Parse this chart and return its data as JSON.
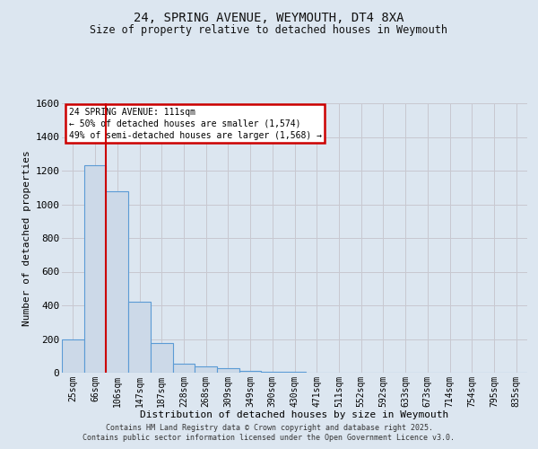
{
  "title_line1": "24, SPRING AVENUE, WEYMOUTH, DT4 8XA",
  "title_line2": "Size of property relative to detached houses in Weymouth",
  "xlabel": "Distribution of detached houses by size in Weymouth",
  "ylabel": "Number of detached properties",
  "categories": [
    "25sqm",
    "66sqm",
    "106sqm",
    "147sqm",
    "187sqm",
    "228sqm",
    "268sqm",
    "309sqm",
    "349sqm",
    "390sqm",
    "430sqm",
    "471sqm",
    "511sqm",
    "552sqm",
    "592sqm",
    "633sqm",
    "673sqm",
    "714sqm",
    "754sqm",
    "795sqm",
    "835sqm"
  ],
  "values": [
    200,
    1230,
    1080,
    420,
    175,
    55,
    40,
    25,
    10,
    5,
    3,
    0,
    0,
    0,
    0,
    0,
    0,
    0,
    0,
    0,
    0
  ],
  "bar_color": "#ccd9e8",
  "bar_edge_color": "#5b9bd5",
  "grid_color": "#c8c8d0",
  "vline_color": "#cc0000",
  "vline_pos": 1.5,
  "ylim": [
    0,
    1600
  ],
  "yticks": [
    0,
    200,
    400,
    600,
    800,
    1000,
    1200,
    1400,
    1600
  ],
  "annotation_text": "24 SPRING AVENUE: 111sqm\n← 50% of detached houses are smaller (1,574)\n49% of semi-detached houses are larger (1,568) →",
  "annotation_box_color": "#cc0000",
  "footer_line1": "Contains HM Land Registry data © Crown copyright and database right 2025.",
  "footer_line2": "Contains public sector information licensed under the Open Government Licence v3.0.",
  "bg_color": "#dce6f0",
  "plot_bg_color": "#dce6f0"
}
